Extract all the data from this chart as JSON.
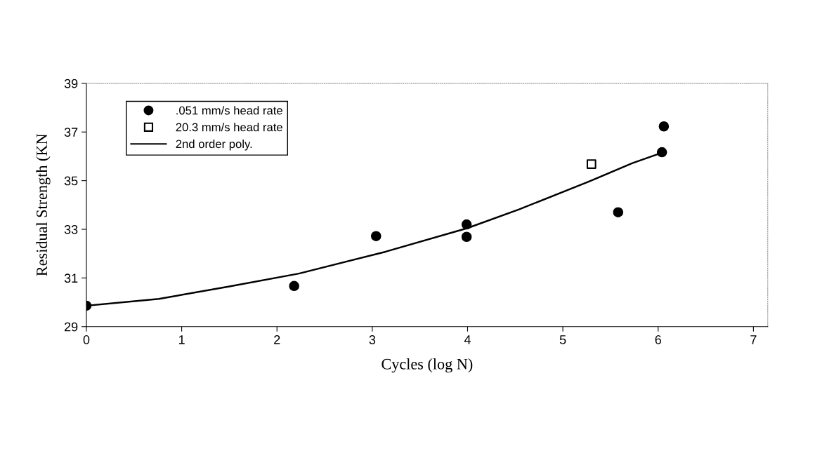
{
  "chart_data": {
    "type": "scatter",
    "xlabel": "Cycles (log N)",
    "ylabel": "Residual Strength (KN",
    "xlim": [
      0,
      7.15
    ],
    "xticks": [
      0,
      1,
      2,
      3,
      4,
      5,
      6,
      7
    ],
    "ylim": [
      29,
      39
    ],
    "yticks": [
      29,
      31,
      33,
      35,
      37,
      39
    ],
    "grid": false,
    "legend": "top left",
    "series": [
      {
        "name": ".051 mm/s head rate",
        "marker": "circle",
        "color": "#000000",
        "x": [
          0,
          2.18,
          3.04,
          3.99,
          3.99,
          5.58,
          6.04,
          6.06
        ],
        "values": [
          29.86,
          30.67,
          32.72,
          33.2,
          32.69,
          33.7,
          36.17,
          37.23
        ]
      },
      {
        "name": "20.3 mm/s head rate",
        "marker": "square",
        "color": "#000000",
        "x": [
          5.3
        ],
        "values": [
          35.68
        ]
      },
      {
        "name": "2nd order poly.",
        "type": "line",
        "marker": "none",
        "line_style": "solid",
        "color": "#000000",
        "x": [
          0,
          0.76,
          1.5,
          2.23,
          3.14,
          4.0,
          4.54,
          5.26,
          5.73,
          6.04
        ],
        "values": [
          29.86,
          30.14,
          30.65,
          31.18,
          32.08,
          33.05,
          33.82,
          34.94,
          35.72,
          36.15
        ]
      }
    ]
  }
}
